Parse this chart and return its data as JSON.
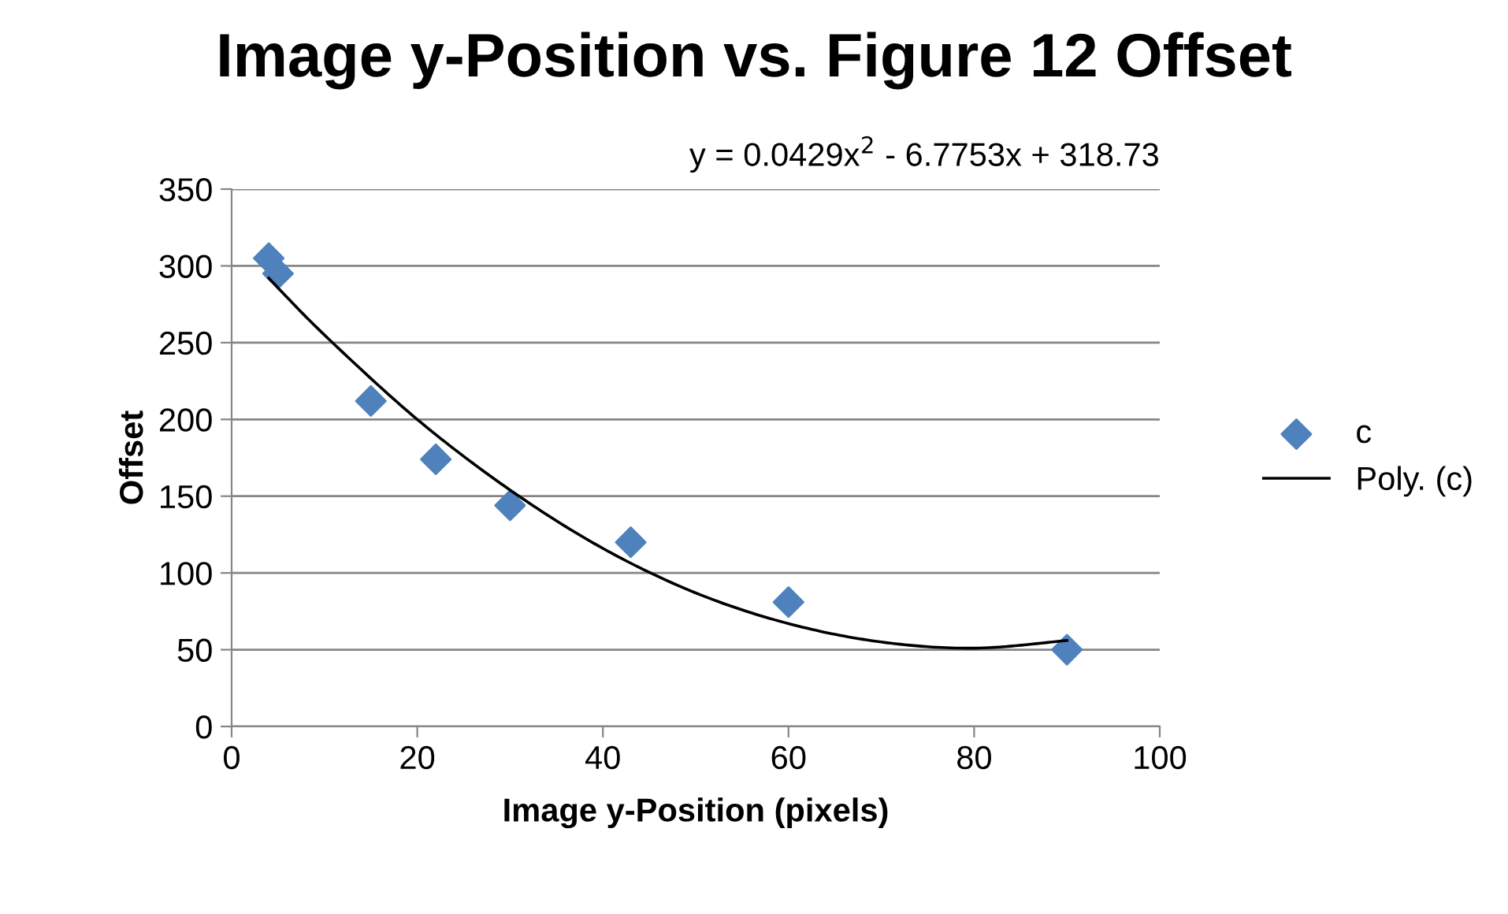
{
  "chart_data": {
    "type": "scatter",
    "title": "Image y-Position vs. Figure 12 Offset",
    "xlabel": "Image y-Position (pixels)",
    "ylabel": "Offset",
    "xlim": [
      0,
      100
    ],
    "xticks": [
      0,
      20,
      40,
      60,
      80,
      100
    ],
    "ylim": [
      0,
      350
    ],
    "yticks": [
      0,
      50,
      100,
      150,
      200,
      250,
      300,
      350
    ],
    "grid": "y",
    "legend": "right",
    "annotations": [
      "y = 0.0429x$^{2}$ - 6.7753x + 318.73"
    ],
    "series": [
      {
        "name": "c",
        "marker": "diamond",
        "color": "#4f81bd",
        "x": [
          4,
          5,
          15,
          22,
          30,
          43,
          60,
          90
        ],
        "values": [
          305,
          295,
          212,
          174,
          144,
          120,
          81,
          50
        ]
      },
      {
        "name": "Poly. (c)",
        "type": "line",
        "marker": "none",
        "line_style": "solid",
        "color": "#000000",
        "x": [
          4,
          10,
          20,
          30,
          40,
          50,
          60,
          70,
          80,
          90
        ],
        "values": [
          292,
          255,
          200,
          154,
          116,
          87,
          67,
          55,
          51,
          56
        ]
      }
    ]
  }
}
